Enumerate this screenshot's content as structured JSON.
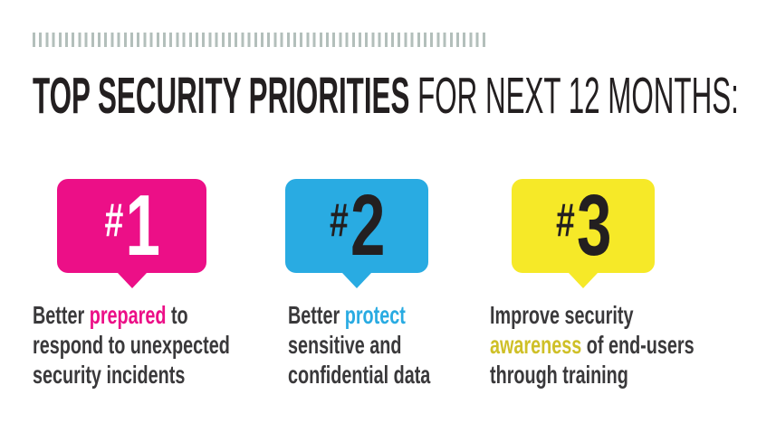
{
  "decor": {
    "background": "#ffffff",
    "tick_color": "#b3bfbb",
    "title_color": "#231f20",
    "text_color": "#3a393b"
  },
  "title": {
    "emphasis": "TOP SECURITY PRIORITIES",
    "rest": " FOR NEXT 12 MONTHS:"
  },
  "priorities": [
    {
      "hash": "#",
      "number": "1",
      "badge_color": "#ec0f87",
      "number_color": "#ffffff",
      "highlight_color": "#ec0f87",
      "highlight_word": "prepared",
      "full_text": "Better prepared to respond to unexpected security incidents",
      "lines": [
        {
          "pre": "Better ",
          "hl": "prepared",
          "post": " to"
        },
        {
          "pre": "respond to unexpected",
          "hl": "",
          "post": ""
        },
        {
          "pre": "security incidents",
          "hl": "",
          "post": ""
        }
      ]
    },
    {
      "hash": "#",
      "number": "2",
      "badge_color": "#29abe2",
      "number_color": "#231f20",
      "highlight_color": "#29abe2",
      "highlight_word": "protect",
      "full_text": "Better protect sensitive and confidential data",
      "lines": [
        {
          "pre": "Better ",
          "hl": "protect",
          "post": ""
        },
        {
          "pre": "sensitive and",
          "hl": "",
          "post": ""
        },
        {
          "pre": "confidential data",
          "hl": "",
          "post": ""
        }
      ]
    },
    {
      "hash": "#",
      "number": "3",
      "badge_color": "#f6e928",
      "number_color": "#231f20",
      "highlight_color": "#cfc028",
      "highlight_word": "awareness",
      "full_text": "Improve security awareness of end-users through training",
      "lines": [
        {
          "pre": "Improve security",
          "hl": "",
          "post": ""
        },
        {
          "pre": "",
          "hl": "awareness",
          "post": " of end-users"
        },
        {
          "pre": "through training",
          "hl": "",
          "post": ""
        }
      ]
    }
  ]
}
